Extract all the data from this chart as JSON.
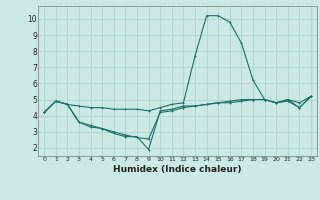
{
  "xlabel": "Humidex (Indice chaleur)",
  "bg_color": "#cce8e4",
  "grid_color": "#aad4cc",
  "line_color": "#1a7068",
  "xlim": [
    -0.5,
    23.5
  ],
  "ylim": [
    1.5,
    10.8
  ],
  "xticks": [
    0,
    1,
    2,
    3,
    4,
    5,
    6,
    7,
    8,
    9,
    10,
    11,
    12,
    13,
    14,
    15,
    16,
    17,
    18,
    19,
    20,
    21,
    22,
    23
  ],
  "yticks": [
    2,
    3,
    4,
    5,
    6,
    7,
    8,
    9,
    10
  ],
  "series1": [
    [
      0,
      4.2
    ],
    [
      1,
      4.9
    ],
    [
      2,
      4.7
    ],
    [
      3,
      4.6
    ],
    [
      4,
      4.5
    ],
    [
      5,
      4.5
    ],
    [
      6,
      4.4
    ],
    [
      7,
      4.4
    ],
    [
      8,
      4.4
    ],
    [
      9,
      4.3
    ],
    [
      10,
      4.5
    ],
    [
      11,
      4.7
    ],
    [
      12,
      4.8
    ],
    [
      13,
      7.7
    ],
    [
      14,
      10.2
    ],
    [
      15,
      10.2
    ],
    [
      16,
      9.8
    ],
    [
      17,
      8.5
    ],
    [
      18,
      6.2
    ],
    [
      19,
      5.0
    ],
    [
      20,
      4.8
    ],
    [
      21,
      5.0
    ],
    [
      22,
      4.8
    ],
    [
      23,
      5.2
    ]
  ],
  "series2": [
    [
      0,
      4.2
    ],
    [
      1,
      4.9
    ],
    [
      2,
      4.7
    ],
    [
      3,
      3.6
    ],
    [
      4,
      3.3
    ],
    [
      5,
      3.2
    ],
    [
      6,
      2.9
    ],
    [
      7,
      2.7
    ],
    [
      8,
      2.7
    ],
    [
      9,
      1.9
    ],
    [
      10,
      4.3
    ],
    [
      11,
      4.4
    ],
    [
      12,
      4.6
    ],
    [
      13,
      4.6
    ],
    [
      14,
      4.7
    ],
    [
      15,
      4.8
    ],
    [
      16,
      4.8
    ],
    [
      17,
      4.9
    ],
    [
      18,
      5.0
    ],
    [
      19,
      5.0
    ],
    [
      20,
      4.8
    ],
    [
      21,
      5.0
    ],
    [
      22,
      4.5
    ],
    [
      23,
      5.2
    ]
  ],
  "series3": [
    [
      0,
      4.2
    ],
    [
      1,
      4.9
    ],
    [
      2,
      4.7
    ],
    [
      3,
      3.6
    ],
    [
      4,
      3.4
    ],
    [
      5,
      3.2
    ],
    [
      6,
      3.0
    ],
    [
      7,
      2.8
    ],
    [
      8,
      2.65
    ],
    [
      9,
      2.55
    ],
    [
      10,
      4.2
    ],
    [
      11,
      4.3
    ],
    [
      12,
      4.5
    ],
    [
      13,
      4.6
    ],
    [
      14,
      4.7
    ],
    [
      15,
      4.8
    ],
    [
      16,
      4.9
    ],
    [
      17,
      5.0
    ],
    [
      18,
      5.0
    ],
    [
      19,
      5.0
    ],
    [
      20,
      4.8
    ],
    [
      21,
      4.9
    ],
    [
      22,
      4.5
    ],
    [
      23,
      5.2
    ]
  ]
}
